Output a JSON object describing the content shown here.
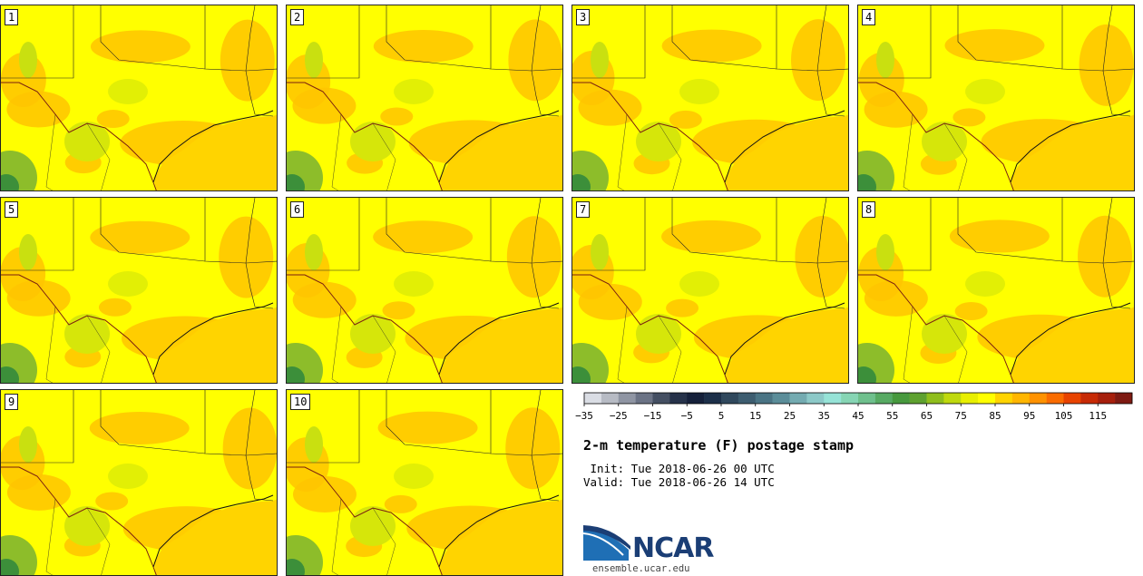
{
  "panels": [
    {
      "label": "1"
    },
    {
      "label": "2"
    },
    {
      "label": "3"
    },
    {
      "label": "4"
    },
    {
      "label": "5"
    },
    {
      "label": "6"
    },
    {
      "label": "7"
    },
    {
      "label": "8"
    },
    {
      "label": "9"
    },
    {
      "label": "10"
    }
  ],
  "colorbar": {
    "colors": [
      "#dadde4",
      "#b7bbc4",
      "#8f95a3",
      "#6b7385",
      "#444f62",
      "#26324a",
      "#15203a",
      "#1c2f49",
      "#30485d",
      "#3d5d70",
      "#4a7484",
      "#5b8d99",
      "#74abb1",
      "#8cc9c8",
      "#96e3d7",
      "#86d5b4",
      "#6fc08d",
      "#57aa63",
      "#47993e",
      "#5ea12f",
      "#8fbe1c",
      "#bfd90e",
      "#e8ef00",
      "#ffff00",
      "#ffd400",
      "#ffb600",
      "#ff9200",
      "#fa6c00",
      "#e84300",
      "#c72a05",
      "#a61f0c",
      "#7e1a12"
    ],
    "tick_labels": [
      "−35",
      "−25",
      "−15",
      "−5",
      "5",
      "15",
      "25",
      "35",
      "45",
      "55",
      "65",
      "75",
      "85",
      "95",
      "105",
      "115"
    ]
  },
  "title": "2-m temperature (F) postage stamp",
  "init_text": " Init: Tue 2018-06-26 00 UTC",
  "valid_text": "Valid: Tue 2018-06-26 14 UTC",
  "logo_text": "NCAR",
  "site_text": "ensemble.ucar.edu"
}
